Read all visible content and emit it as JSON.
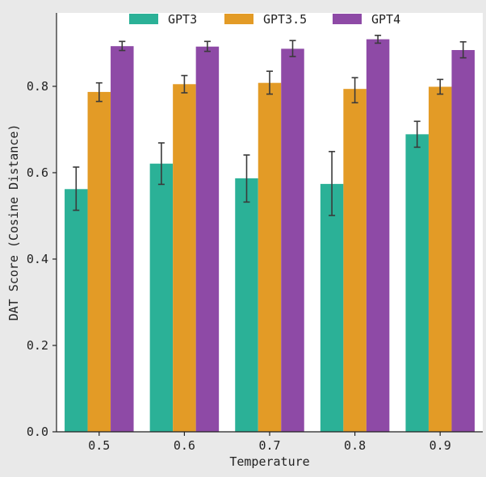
{
  "chart_data": {
    "type": "bar",
    "title": "",
    "xlabel": "Temperature",
    "ylabel": "DAT Score (Cosine Distance)",
    "categories": [
      "0.5",
      "0.6",
      "0.7",
      "0.8",
      "0.9"
    ],
    "ylim": [
      0,
      0.97
    ],
    "yticks": [
      0.0,
      0.2,
      0.4,
      0.6,
      0.8
    ],
    "ytick_labels": [
      "0.0",
      "0.2",
      "0.4",
      "0.6",
      "0.8"
    ],
    "grid": false,
    "legend_position": "top-center",
    "series": [
      {
        "name": "GPT3",
        "color": "#2bb197",
        "values": [
          0.562,
          0.621,
          0.587,
          0.574,
          0.689
        ],
        "err_low": [
          0.513,
          0.573,
          0.532,
          0.501,
          0.659
        ],
        "err_high": [
          0.613,
          0.669,
          0.641,
          0.649,
          0.719
        ]
      },
      {
        "name": "GPT3.5",
        "color": "#e39b26",
        "values": [
          0.787,
          0.805,
          0.808,
          0.794,
          0.799
        ],
        "err_low": [
          0.765,
          0.785,
          0.782,
          0.762,
          0.782
        ],
        "err_high": [
          0.808,
          0.825,
          0.835,
          0.82,
          0.816
        ]
      },
      {
        "name": "GPT4",
        "color": "#8e4aa6",
        "values": [
          0.893,
          0.892,
          0.887,
          0.909,
          0.884
        ],
        "err_low": [
          0.883,
          0.881,
          0.869,
          0.9,
          0.866
        ],
        "err_high": [
          0.904,
          0.904,
          0.906,
          0.918,
          0.903
        ]
      }
    ]
  }
}
